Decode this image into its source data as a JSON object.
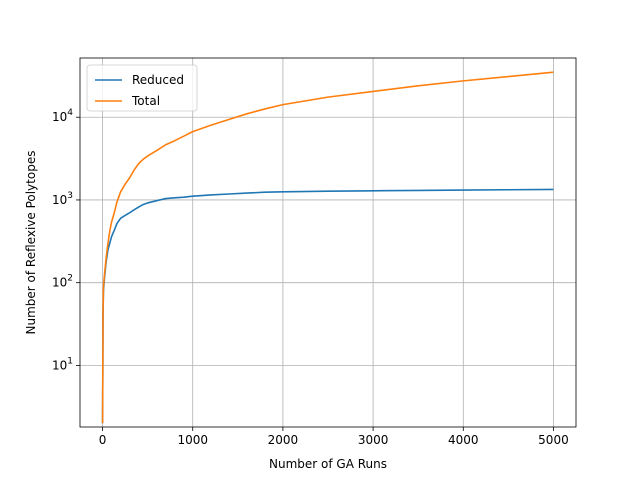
{
  "chart_data": {
    "type": "line",
    "title": "",
    "xlabel": "Number of GA Runs",
    "ylabel": "Number of Reflexive Polytopes",
    "xlim": [
      -250,
      5250
    ],
    "ylim": [
      1.8,
      52000
    ],
    "yscale": "log",
    "grid": true,
    "legend_position": "top-left",
    "x_ticks": [
      {
        "value": 0,
        "label": "0"
      },
      {
        "value": 1000,
        "label": "1000"
      },
      {
        "value": 2000,
        "label": "2000"
      },
      {
        "value": 3000,
        "label": "3000"
      },
      {
        "value": 4000,
        "label": "4000"
      },
      {
        "value": 5000,
        "label": "5000"
      }
    ],
    "y_ticks": [
      {
        "value": 10,
        "base": "10",
        "exp": "1"
      },
      {
        "value": 100,
        "base": "10",
        "exp": "2"
      },
      {
        "value": 1000,
        "base": "10",
        "exp": "3"
      },
      {
        "value": 10000,
        "base": "10",
        "exp": "4"
      }
    ],
    "series": [
      {
        "name": "Reduced",
        "color": "#1f77b4",
        "points": [
          [
            0,
            2
          ],
          [
            3,
            8
          ],
          [
            5,
            40
          ],
          [
            10,
            80
          ],
          [
            20,
            110
          ],
          [
            40,
            180
          ],
          [
            60,
            250
          ],
          [
            80,
            300
          ],
          [
            100,
            360
          ],
          [
            130,
            430
          ],
          [
            160,
            520
          ],
          [
            200,
            600
          ],
          [
            250,
            650
          ],
          [
            300,
            700
          ],
          [
            350,
            760
          ],
          [
            400,
            820
          ],
          [
            450,
            880
          ],
          [
            500,
            920
          ],
          [
            600,
            980
          ],
          [
            700,
            1040
          ],
          [
            800,
            1060
          ],
          [
            900,
            1080
          ],
          [
            1000,
            1110
          ],
          [
            1200,
            1150
          ],
          [
            1400,
            1180
          ],
          [
            1600,
            1210
          ],
          [
            1800,
            1240
          ],
          [
            2000,
            1255
          ],
          [
            2500,
            1275
          ],
          [
            3000,
            1290
          ],
          [
            3500,
            1305
          ],
          [
            4000,
            1315
          ],
          [
            4500,
            1328
          ],
          [
            5000,
            1340
          ]
        ]
      },
      {
        "name": "Total",
        "color": "#ff7f0e",
        "points": [
          [
            0,
            2
          ],
          [
            3,
            10
          ],
          [
            6,
            50
          ],
          [
            10,
            90
          ],
          [
            20,
            120
          ],
          [
            40,
            200
          ],
          [
            60,
            300
          ],
          [
            80,
            420
          ],
          [
            100,
            540
          ],
          [
            130,
            700
          ],
          [
            160,
            950
          ],
          [
            200,
            1250
          ],
          [
            250,
            1550
          ],
          [
            300,
            1850
          ],
          [
            350,
            2300
          ],
          [
            400,
            2750
          ],
          [
            450,
            3100
          ],
          [
            500,
            3400
          ],
          [
            600,
            3950
          ],
          [
            700,
            4650
          ],
          [
            800,
            5200
          ],
          [
            900,
            5900
          ],
          [
            1000,
            6700
          ],
          [
            1200,
            8000
          ],
          [
            1400,
            9400
          ],
          [
            1600,
            11000
          ],
          [
            1800,
            12600
          ],
          [
            2000,
            14200
          ],
          [
            2500,
            17500
          ],
          [
            3000,
            20500
          ],
          [
            3500,
            24000
          ],
          [
            4000,
            27500
          ],
          [
            4500,
            31000
          ],
          [
            5000,
            35000
          ]
        ]
      }
    ]
  }
}
